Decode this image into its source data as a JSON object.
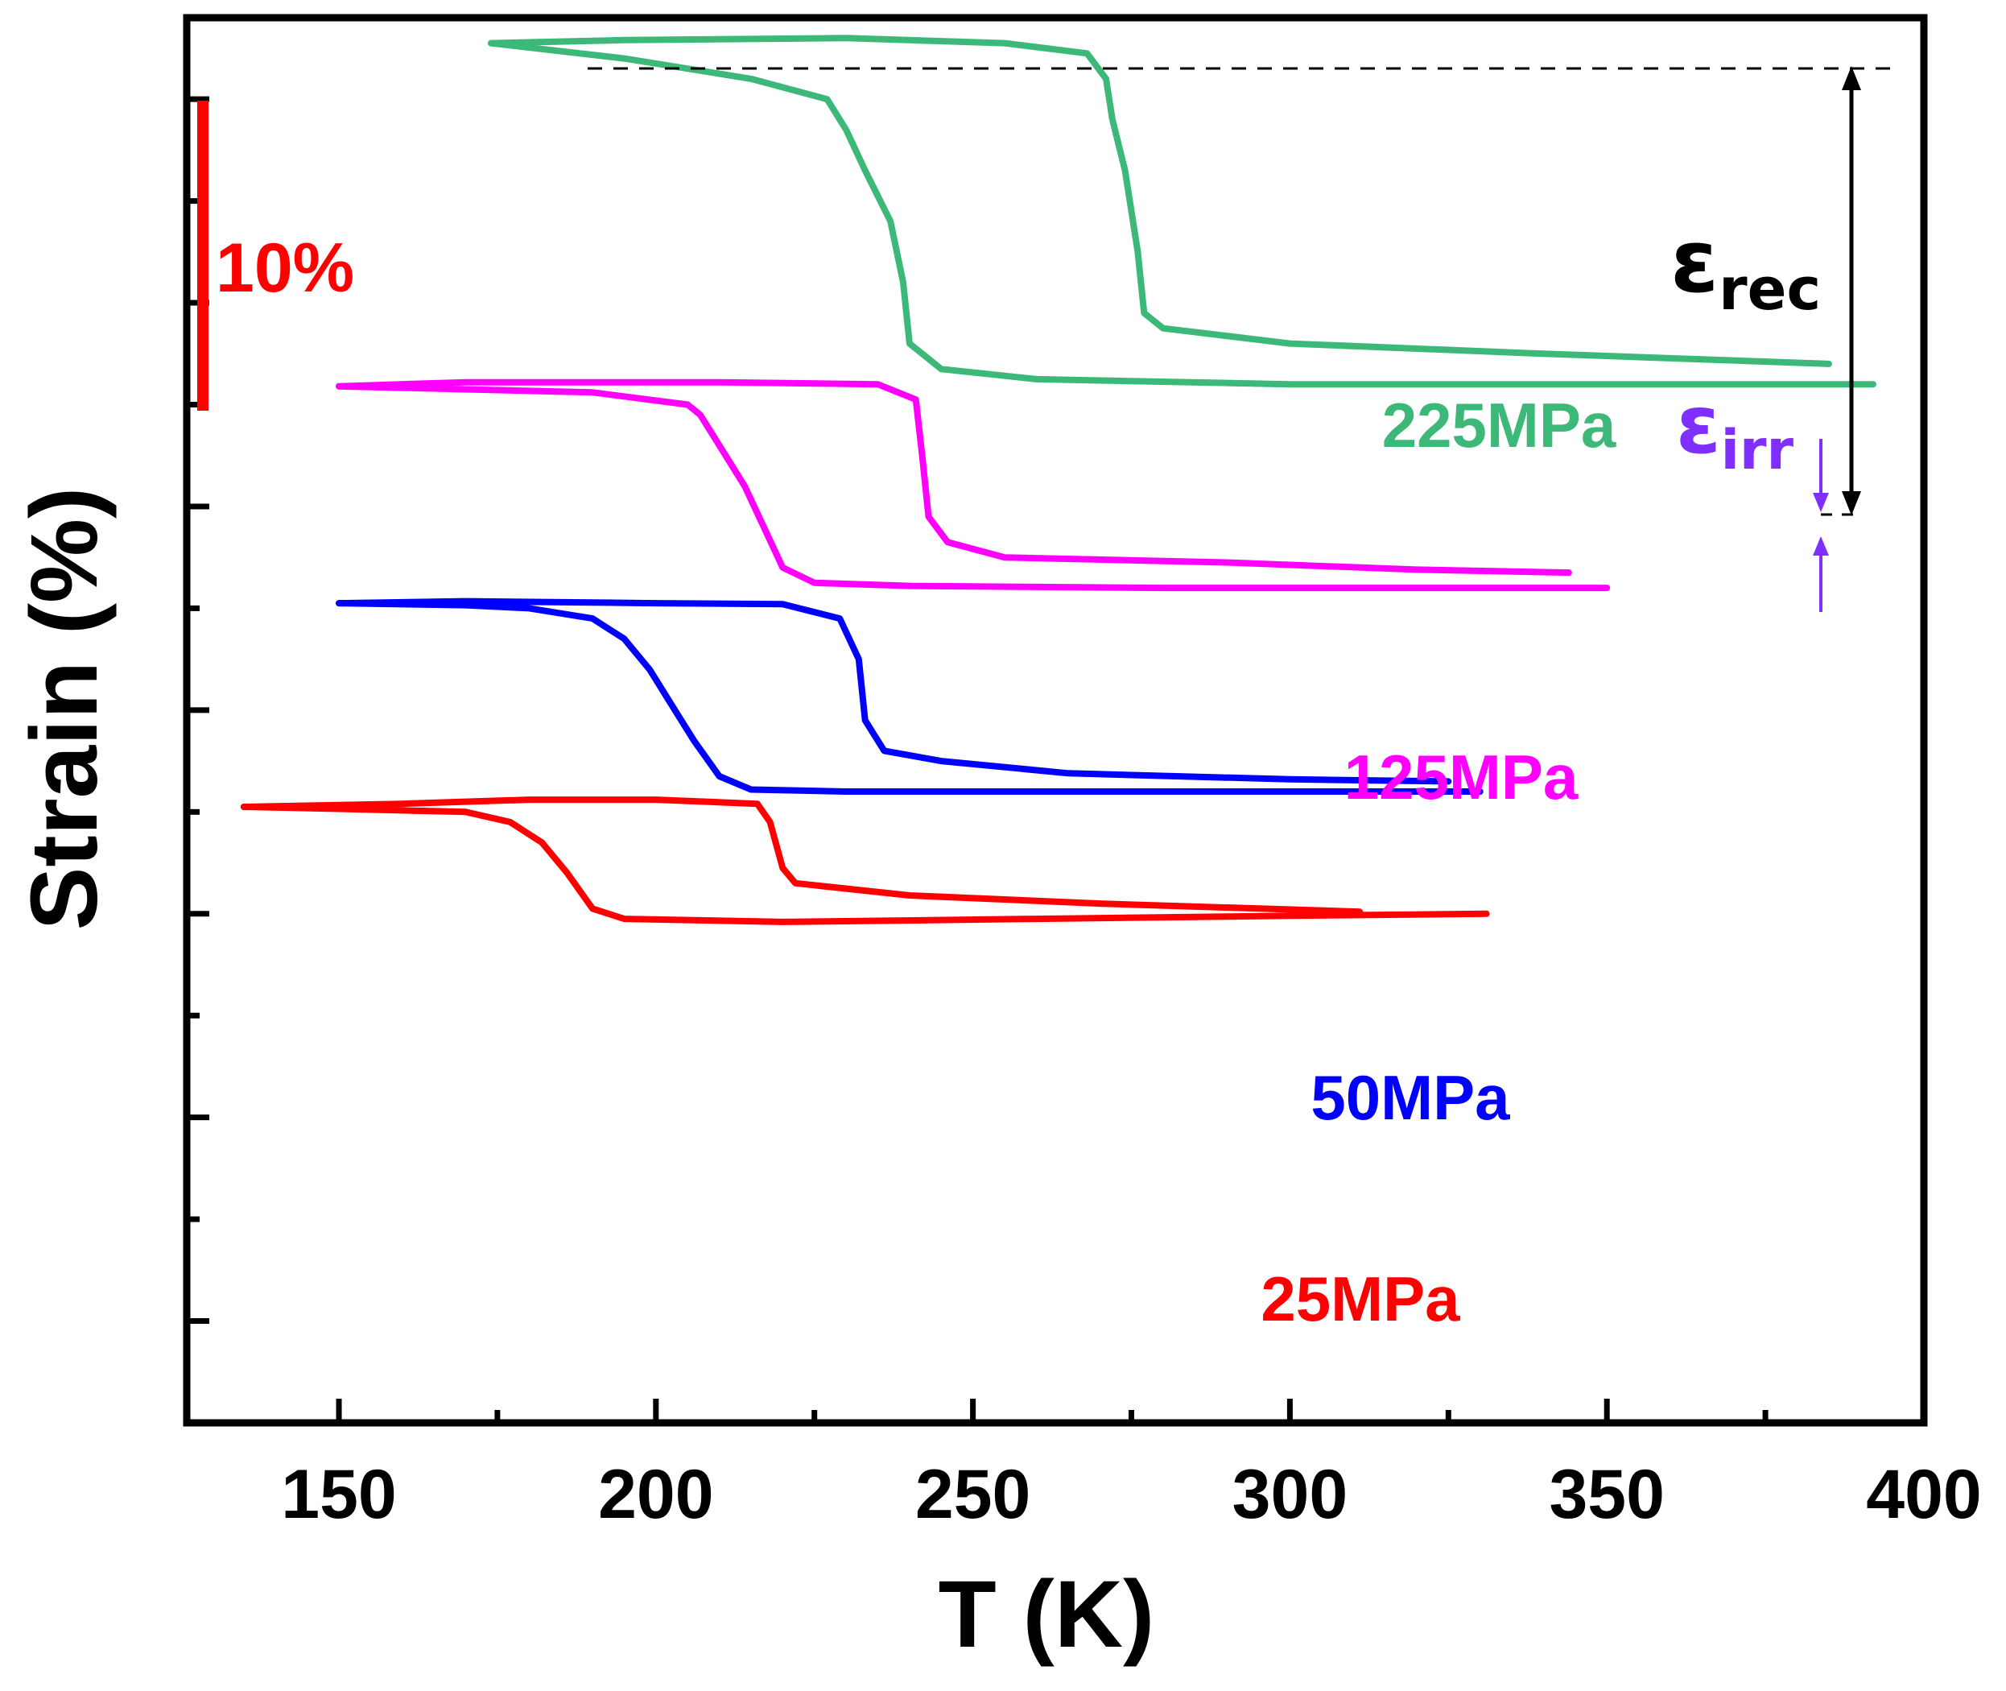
{
  "chart_data": {
    "type": "line",
    "title": "",
    "xlabel": "T (K)",
    "ylabel": "Strain (%)",
    "xlim": [
      126,
      400
    ],
    "ylim": [
      -1,
      12.8
    ],
    "x_ticks": [
      150,
      200,
      250,
      300,
      350,
      400
    ],
    "scale_bar": {
      "label": "10%",
      "length_percent": 10,
      "color": "#ff0000"
    },
    "annotations": {
      "eps_rec": {
        "symbol": "ε",
        "sub": "rec",
        "color": "#000000"
      },
      "eps_irr": {
        "symbol": "ε",
        "sub": "irr",
        "color": "#7f2fff"
      }
    },
    "series": [
      {
        "name": "225MPa",
        "color": "#3cb878",
        "cooling": [
          [
            392,
            9.2
          ],
          [
            370,
            9.2
          ],
          [
            340,
            9.2
          ],
          [
            300,
            9.2
          ],
          [
            260,
            9.25
          ],
          [
            245,
            9.35
          ],
          [
            240,
            9.6
          ],
          [
            239,
            10.2
          ],
          [
            237,
            10.8
          ],
          [
            233,
            11.3
          ],
          [
            230,
            11.7
          ],
          [
            227,
            12.0
          ],
          [
            215,
            12.2
          ],
          [
            195,
            12.4
          ],
          [
            174,
            12.55
          ]
        ],
        "heating": [
          [
            174,
            12.55
          ],
          [
            195,
            12.58
          ],
          [
            230,
            12.6
          ],
          [
            255,
            12.55
          ],
          [
            268,
            12.45
          ],
          [
            271,
            12.2
          ],
          [
            272,
            11.8
          ],
          [
            274,
            11.3
          ],
          [
            276,
            10.5
          ],
          [
            277,
            9.9
          ],
          [
            280,
            9.75
          ],
          [
            300,
            9.6
          ],
          [
            340,
            9.5
          ],
          [
            385,
            9.4
          ]
        ]
      },
      {
        "name": "125MPa",
        "color": "#ff00ff",
        "cooling": [
          [
            350,
            7.2
          ],
          [
            320,
            7.2
          ],
          [
            280,
            7.2
          ],
          [
            240,
            7.22
          ],
          [
            225,
            7.25
          ],
          [
            220,
            7.4
          ],
          [
            217,
            7.8
          ],
          [
            214,
            8.2
          ],
          [
            210,
            8.6
          ],
          [
            207,
            8.9
          ],
          [
            205,
            9.0
          ],
          [
            190,
            9.12
          ],
          [
            170,
            9.15
          ],
          [
            150,
            9.18
          ]
        ],
        "heating": [
          [
            150,
            9.18
          ],
          [
            170,
            9.22
          ],
          [
            210,
            9.22
          ],
          [
            235,
            9.2
          ],
          [
            241,
            9.05
          ],
          [
            242,
            8.5
          ],
          [
            243,
            7.9
          ],
          [
            246,
            7.65
          ],
          [
            255,
            7.5
          ],
          [
            290,
            7.45
          ],
          [
            320,
            7.38
          ],
          [
            344,
            7.35
          ]
        ]
      },
      {
        "name": "50MPa",
        "color": "#0000ff",
        "cooling": [
          [
            330,
            5.2
          ],
          [
            300,
            5.2
          ],
          [
            260,
            5.2
          ],
          [
            230,
            5.2
          ],
          [
            215,
            5.22
          ],
          [
            210,
            5.35
          ],
          [
            206,
            5.7
          ],
          [
            203,
            6.0
          ],
          [
            199,
            6.4
          ],
          [
            195,
            6.7
          ],
          [
            190,
            6.9
          ],
          [
            180,
            7.0
          ],
          [
            170,
            7.03
          ],
          [
            150,
            7.05
          ]
        ],
        "heating": [
          [
            150,
            7.05
          ],
          [
            170,
            7.07
          ],
          [
            200,
            7.05
          ],
          [
            220,
            7.04
          ],
          [
            229,
            6.9
          ],
          [
            232,
            6.5
          ],
          [
            233,
            5.9
          ],
          [
            236,
            5.6
          ],
          [
            245,
            5.5
          ],
          [
            265,
            5.38
          ],
          [
            300,
            5.32
          ],
          [
            325,
            5.3
          ]
        ]
      },
      {
        "name": "25MPa",
        "color": "#ff0000",
        "cooling": [
          [
            331,
            4.0
          ],
          [
            300,
            3.98
          ],
          [
            260,
            3.95
          ],
          [
            220,
            3.92
          ],
          [
            195,
            3.95
          ],
          [
            190,
            4.05
          ],
          [
            186,
            4.4
          ],
          [
            182,
            4.7
          ],
          [
            177,
            4.9
          ],
          [
            170,
            5.0
          ],
          [
            150,
            5.03
          ],
          [
            135,
            5.05
          ]
        ],
        "heating": [
          [
            135,
            5.05
          ],
          [
            160,
            5.08
          ],
          [
            180,
            5.12
          ],
          [
            200,
            5.12
          ],
          [
            216,
            5.08
          ],
          [
            218,
            4.9
          ],
          [
            220,
            4.45
          ],
          [
            222,
            4.3
          ],
          [
            240,
            4.18
          ],
          [
            270,
            4.1
          ],
          [
            311,
            4.02
          ]
        ]
      }
    ]
  }
}
